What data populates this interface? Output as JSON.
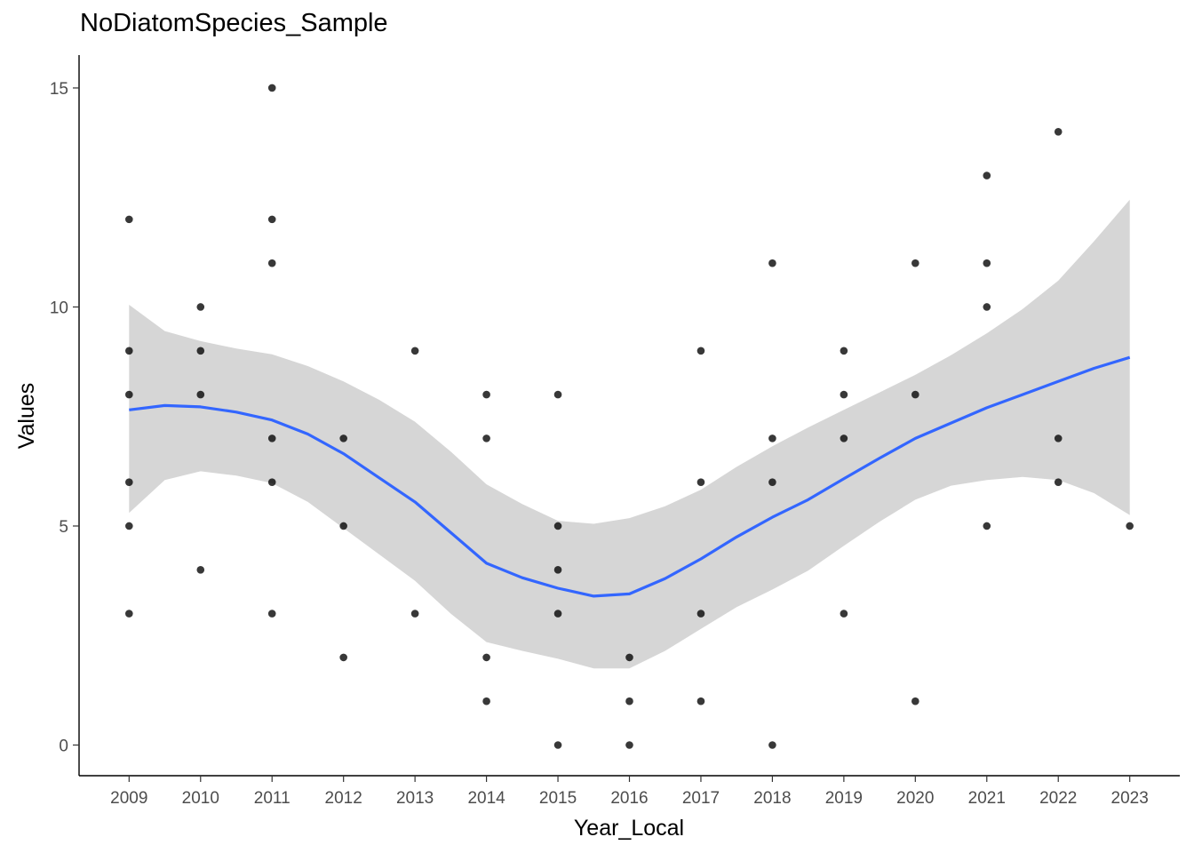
{
  "chart_data": {
    "type": "scatter",
    "title": "NoDiatomSpecies_Sample",
    "xlabel": "Year_Local",
    "ylabel": "Values",
    "x_ticks": [
      "2009",
      "2010",
      "2011",
      "2012",
      "2013",
      "2014",
      "2015",
      "2016",
      "2017",
      "2018",
      "2019",
      "2020",
      "2021",
      "2022",
      "2023"
    ],
    "y_ticks": [
      "0",
      "5",
      "10",
      "15"
    ],
    "xlim": [
      2008.3,
      2023.7
    ],
    "ylim": [
      -0.7,
      15.75
    ],
    "grid": false,
    "points": [
      {
        "x": 2009,
        "y": 12
      },
      {
        "x": 2009,
        "y": 9
      },
      {
        "x": 2009,
        "y": 8
      },
      {
        "x": 2009,
        "y": 6
      },
      {
        "x": 2009,
        "y": 5
      },
      {
        "x": 2009,
        "y": 3
      },
      {
        "x": 2010,
        "y": 10
      },
      {
        "x": 2010,
        "y": 9
      },
      {
        "x": 2010,
        "y": 8
      },
      {
        "x": 2010,
        "y": 4
      },
      {
        "x": 2011,
        "y": 15
      },
      {
        "x": 2011,
        "y": 12
      },
      {
        "x": 2011,
        "y": 11
      },
      {
        "x": 2011,
        "y": 7
      },
      {
        "x": 2011,
        "y": 6
      },
      {
        "x": 2011,
        "y": 3
      },
      {
        "x": 2012,
        "y": 7
      },
      {
        "x": 2012,
        "y": 5
      },
      {
        "x": 2012,
        "y": 2
      },
      {
        "x": 2013,
        "y": 9
      },
      {
        "x": 2013,
        "y": 3
      },
      {
        "x": 2014,
        "y": 8
      },
      {
        "x": 2014,
        "y": 7
      },
      {
        "x": 2014,
        "y": 2
      },
      {
        "x": 2014,
        "y": 1
      },
      {
        "x": 2015,
        "y": 8
      },
      {
        "x": 2015,
        "y": 5
      },
      {
        "x": 2015,
        "y": 4
      },
      {
        "x": 2015,
        "y": 3
      },
      {
        "x": 2015,
        "y": 0
      },
      {
        "x": 2016,
        "y": 2
      },
      {
        "x": 2016,
        "y": 1
      },
      {
        "x": 2016,
        "y": 0
      },
      {
        "x": 2017,
        "y": 9
      },
      {
        "x": 2017,
        "y": 6
      },
      {
        "x": 2017,
        "y": 3
      },
      {
        "x": 2017,
        "y": 1
      },
      {
        "x": 2018,
        "y": 11
      },
      {
        "x": 2018,
        "y": 7
      },
      {
        "x": 2018,
        "y": 6
      },
      {
        "x": 2018,
        "y": 0
      },
      {
        "x": 2019,
        "y": 9
      },
      {
        "x": 2019,
        "y": 8
      },
      {
        "x": 2019,
        "y": 7
      },
      {
        "x": 2019,
        "y": 3
      },
      {
        "x": 2020,
        "y": 11
      },
      {
        "x": 2020,
        "y": 8
      },
      {
        "x": 2020,
        "y": 1
      },
      {
        "x": 2021,
        "y": 13
      },
      {
        "x": 2021,
        "y": 11
      },
      {
        "x": 2021,
        "y": 10
      },
      {
        "x": 2021,
        "y": 5
      },
      {
        "x": 2022,
        "y": 14
      },
      {
        "x": 2022,
        "y": 7
      },
      {
        "x": 2022,
        "y": 6
      },
      {
        "x": 2023,
        "y": 5
      }
    ],
    "smooth": {
      "x": [
        2009,
        2009.5,
        2010,
        2010.5,
        2011,
        2011.5,
        2012,
        2012.5,
        2013,
        2013.5,
        2014,
        2014.5,
        2015,
        2015.5,
        2016,
        2016.5,
        2017,
        2017.5,
        2018,
        2018.5,
        2019,
        2019.5,
        2020,
        2020.5,
        2021,
        2021.5,
        2022,
        2022.5,
        2023
      ],
      "y": [
        7.65,
        7.75,
        7.72,
        7.6,
        7.42,
        7.1,
        6.65,
        6.1,
        5.55,
        4.85,
        4.15,
        3.82,
        3.58,
        3.4,
        3.45,
        3.8,
        4.25,
        4.75,
        5.2,
        5.6,
        6.08,
        6.55,
        7.0,
        7.35,
        7.7,
        8.0,
        8.3,
        8.6,
        8.85
      ],
      "lower": [
        5.3,
        6.05,
        6.25,
        6.15,
        5.98,
        5.55,
        4.95,
        4.35,
        3.75,
        3.0,
        2.35,
        2.15,
        1.97,
        1.75,
        1.75,
        2.15,
        2.65,
        3.15,
        3.55,
        3.98,
        4.55,
        5.1,
        5.6,
        5.92,
        6.05,
        6.12,
        6.05,
        5.75,
        5.25
      ],
      "upper": [
        10.05,
        9.45,
        9.22,
        9.05,
        8.92,
        8.65,
        8.3,
        7.88,
        7.38,
        6.7,
        5.95,
        5.5,
        5.12,
        5.05,
        5.18,
        5.45,
        5.83,
        6.35,
        6.82,
        7.25,
        7.65,
        8.05,
        8.45,
        8.9,
        9.4,
        9.95,
        10.6,
        11.5,
        12.45
      ]
    },
    "point_color": "#000000",
    "line_color": "#3366ff",
    "band_color": "#d6d6d6"
  }
}
